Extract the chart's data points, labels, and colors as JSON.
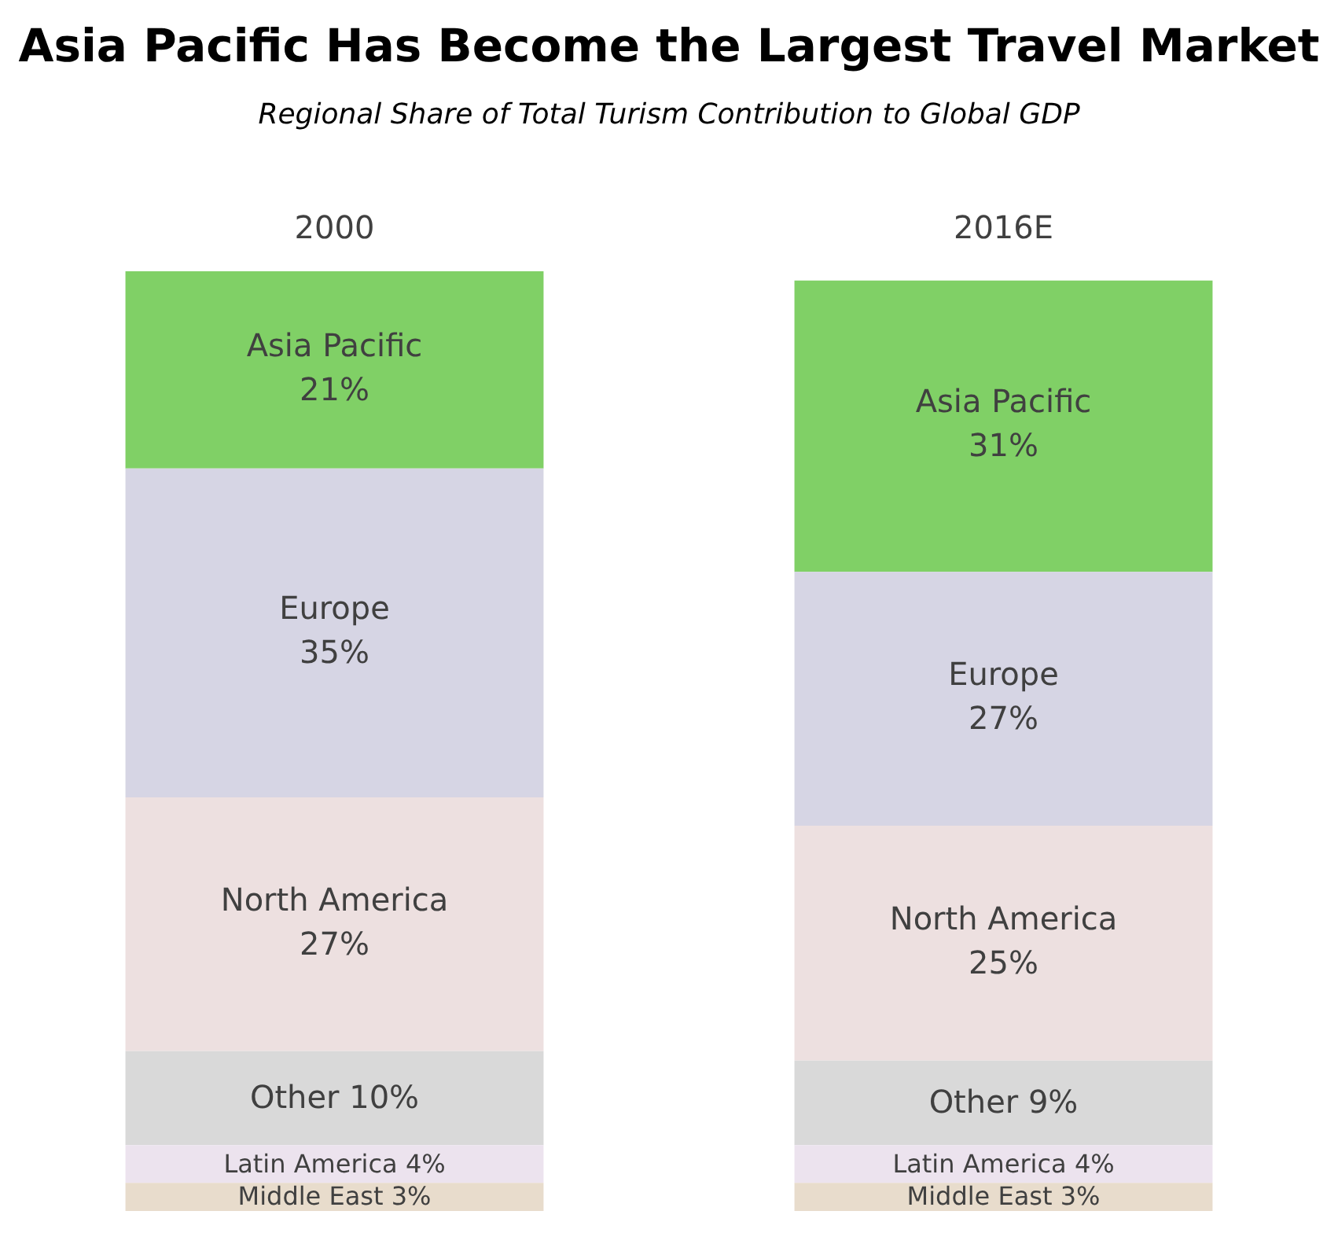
{
  "chart_data": {
    "type": "bar",
    "title": "Asia Pacific Has Become the Largest Travel Market",
    "subtitle": "Regional Share of Total Turism Contribution to Global GDP",
    "categories": [
      "2000",
      "2016E"
    ],
    "stacked": true,
    "ylim": [
      0,
      100
    ],
    "tick_labels": "x",
    "series": [
      {
        "name": "Middle East",
        "color": "#e8dccc",
        "values": [
          3,
          3
        ],
        "value_labels": [
          "3%",
          "3%"
        ]
      },
      {
        "name": "Latin America",
        "color": "#ece3ee",
        "values": [
          4,
          4
        ],
        "value_labels": [
          "4%",
          "4%"
        ]
      },
      {
        "name": "Other",
        "color": "#d9d9d9",
        "values": [
          10,
          9
        ],
        "value_labels": [
          "10%",
          "9%"
        ]
      },
      {
        "name": "North America",
        "color": "#ede0e0",
        "values": [
          27,
          25
        ],
        "value_labels": [
          "27%",
          "25%"
        ]
      },
      {
        "name": "Europe",
        "color": "#d6d5e4",
        "values": [
          35,
          27
        ],
        "value_labels": [
          "35%",
          "27%"
        ]
      },
      {
        "name": "Asia Pacific",
        "color": "#80d066",
        "values": [
          21,
          31
        ],
        "value_labels": [
          "21%",
          "31%"
        ]
      }
    ]
  }
}
